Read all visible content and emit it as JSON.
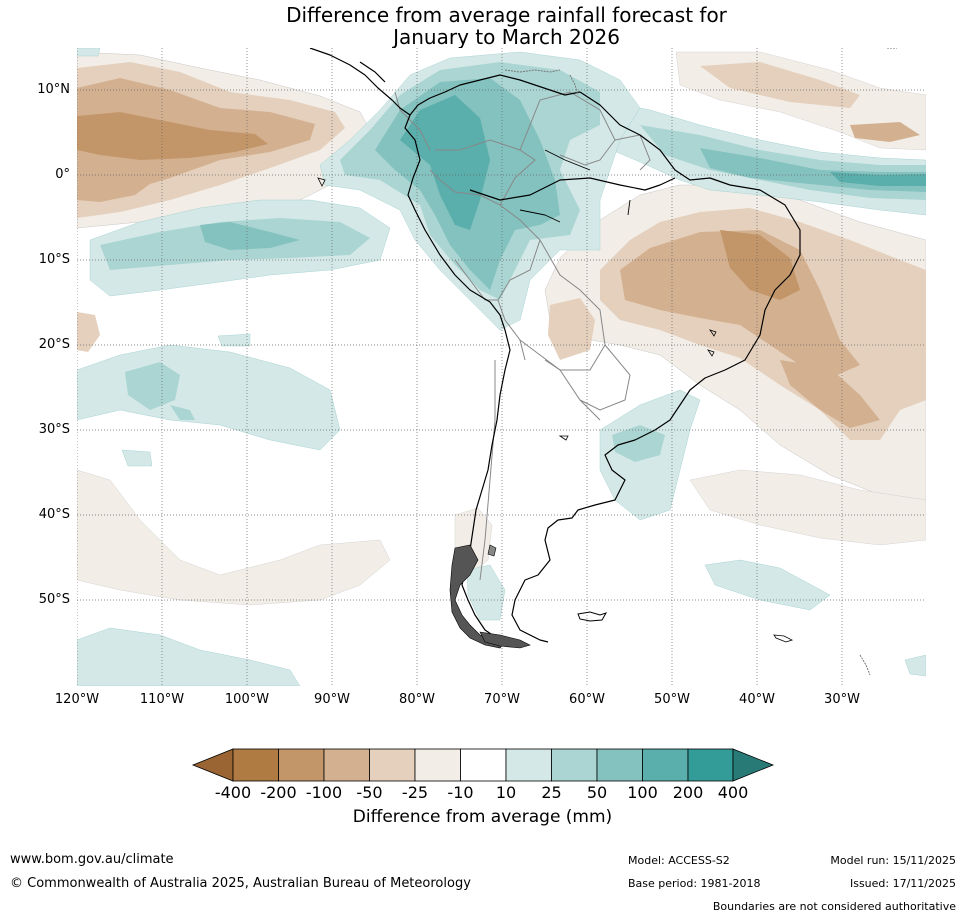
{
  "title": {
    "line1": "Difference from average rainfall forecast for",
    "line2": "January to March 2026"
  },
  "map": {
    "region": "South America",
    "latitude_labels": [
      "10°N",
      "0°",
      "10°S",
      "20°S",
      "30°S",
      "40°S",
      "50°S"
    ],
    "longitude_labels": [
      "120°W",
      "110°W",
      "100°W",
      "90°W",
      "80°W",
      "70°W",
      "60°W",
      "50°W",
      "40°W",
      "30°W"
    ]
  },
  "colorbar": {
    "ticks": [
      "-400",
      "-200",
      "-100",
      "-50",
      "-25",
      "-10",
      "10",
      "25",
      "50",
      "100",
      "200",
      "400"
    ],
    "colors": [
      "#9a6532",
      "#b07a43",
      "#c3966a",
      "#d3b190",
      "#e4d0bd",
      "#f2ede6",
      "#ffffff",
      "#d4e9e7",
      "#abd5d2",
      "#84c2bf",
      "#5aaeab",
      "#339c98",
      "#287a76"
    ],
    "label": "Difference from average (mm)"
  },
  "footer": {
    "url": "www.bom.gov.au/climate",
    "copyright": "© Commonwealth of Australia 2025, Australian Bureau of Meteorology",
    "model": "Model: ACCESS-S2",
    "base_period": "Base period: 1981-2018",
    "model_run": "Model run: 15/11/2025",
    "issued": "Issued: 17/11/2025",
    "disclaimer": "Boundaries are not considered authoritative"
  }
}
